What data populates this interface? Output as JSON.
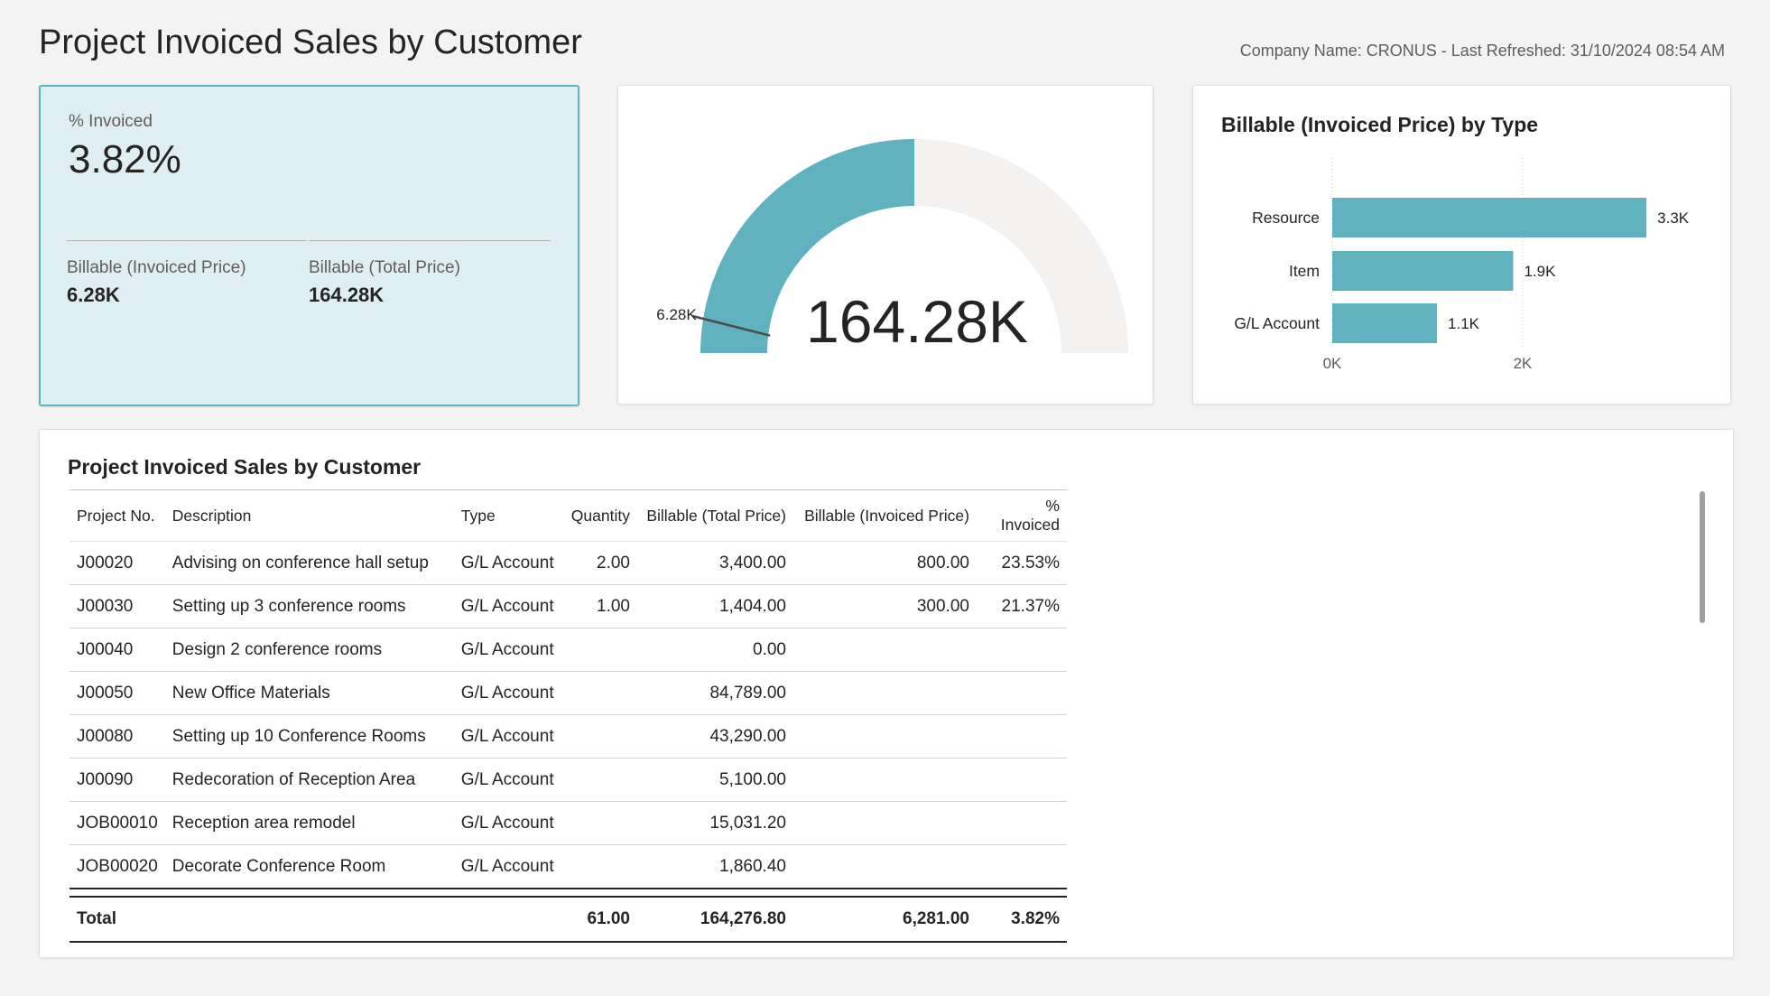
{
  "header": {
    "title": "Project Invoiced Sales by Customer",
    "meta": "Company Name: CRONUS - Last Refreshed: 31/10/2024 08:54 AM"
  },
  "kpi": {
    "label": "% Invoiced",
    "value": "3.82%",
    "invoiced_label": "Billable (Invoiced Price)",
    "invoiced_value": "6.28K",
    "total_label": "Billable (Total Price)",
    "total_value": "164.28K"
  },
  "gauge": {
    "center_value": "164.28K",
    "target_label": "6.28K",
    "fill_fraction": 0.5,
    "target_fraction": 0.0382,
    "fill_color": "#5fb2be",
    "track_color": "#f3f2f1"
  },
  "chart_data": {
    "type": "bar",
    "orientation": "horizontal",
    "title": "Billable (Invoiced Price) by Type",
    "categories": [
      "Resource",
      "Item",
      "G/L Account"
    ],
    "values": [
      3300,
      1900,
      1100
    ],
    "value_labels": [
      "3.3K",
      "1.9K",
      "1.1K"
    ],
    "x_ticks": [
      0,
      2000
    ],
    "x_tick_labels": [
      "0K",
      "2K"
    ],
    "xlim": [
      0,
      3600
    ],
    "grid": true,
    "bar_color": "#5fb2be"
  },
  "table": {
    "title": "Project Invoiced Sales by Customer",
    "columns": [
      "Project No.",
      "Description",
      "Type",
      "Quantity",
      "Billable (Total Price)",
      "Billable (Invoiced Price)",
      "% Invoiced"
    ],
    "rows": [
      [
        "J00020",
        "Advising on conference hall setup",
        "G/L Account",
        "2.00",
        "3,400.00",
        "800.00",
        "23.53%"
      ],
      [
        "J00030",
        "Setting up 3 conference rooms",
        "G/L Account",
        "1.00",
        "1,404.00",
        "300.00",
        "21.37%"
      ],
      [
        "J00040",
        "Design 2 conference rooms",
        "G/L Account",
        "",
        "0.00",
        "",
        ""
      ],
      [
        "J00050",
        "New Office Materials",
        "G/L Account",
        "",
        "84,789.00",
        "",
        ""
      ],
      [
        "J00080",
        "Setting up 10 Conference Rooms",
        "G/L Account",
        "",
        "43,290.00",
        "",
        ""
      ],
      [
        "J00090",
        "Redecoration of Reception Area",
        "G/L Account",
        "",
        "5,100.00",
        "",
        ""
      ],
      [
        "JOB00010",
        "Reception area remodel",
        "G/L Account",
        "",
        "15,031.20",
        "",
        ""
      ],
      [
        "JOB00020",
        "Decorate Conference Room",
        "G/L Account",
        "",
        "1,860.40",
        "",
        ""
      ]
    ],
    "total": [
      "Total",
      "",
      "",
      "61.00",
      "164,276.80",
      "6,281.00",
      "3.82%"
    ]
  }
}
